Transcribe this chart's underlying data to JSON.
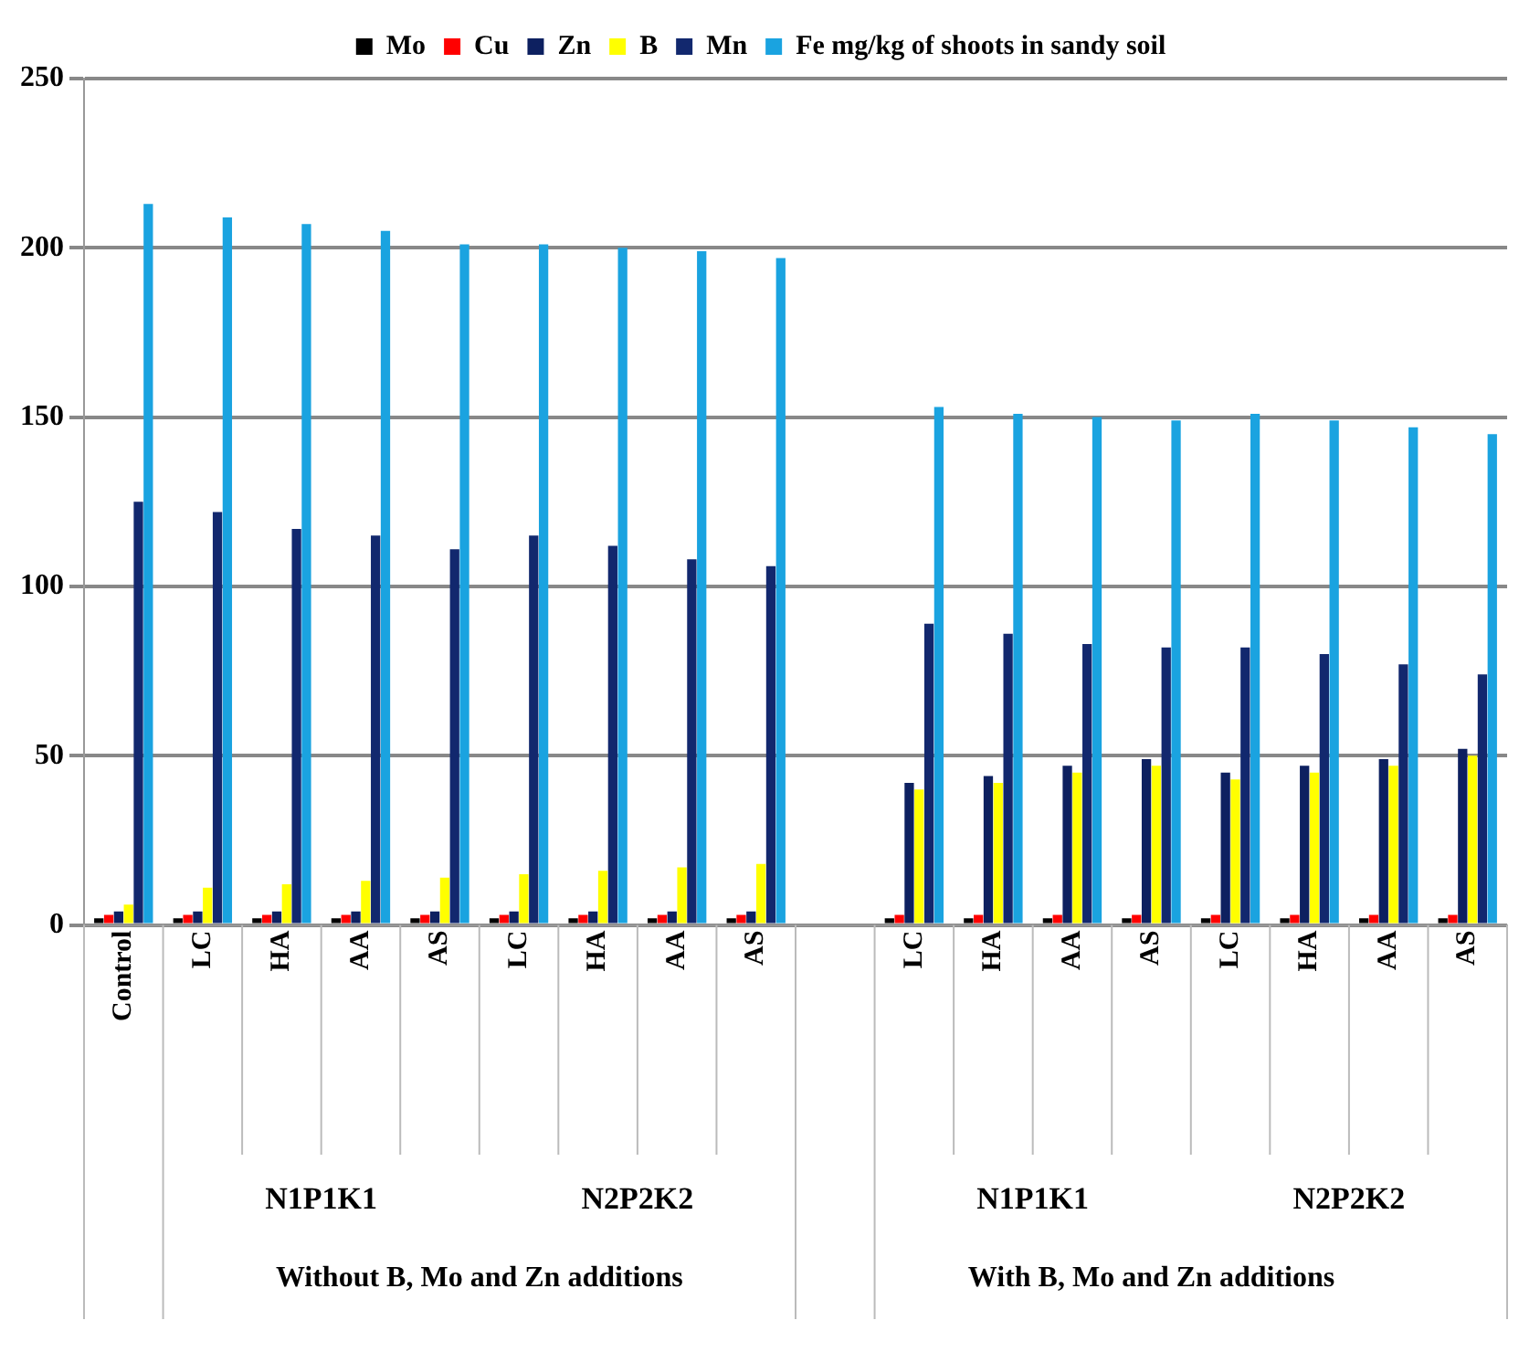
{
  "chart_data": {
    "type": "bar",
    "categories": [
      "Control",
      "LC",
      "HA",
      "AA",
      "AS",
      "LC",
      "HA",
      "AA",
      "AS",
      null,
      "LC",
      "HA",
      "AA",
      "AS",
      "LC",
      "HA",
      "AA",
      "AS"
    ],
    "series": [
      {
        "name": "Mo",
        "color": "#000000",
        "values": [
          2,
          2,
          2,
          2,
          2,
          2,
          2,
          2,
          2,
          null,
          2,
          2,
          2,
          2,
          2,
          2,
          2,
          2
        ]
      },
      {
        "name": "Cu",
        "color": "#ff0000",
        "values": [
          3,
          3,
          3,
          3,
          3,
          3,
          3,
          3,
          3,
          null,
          3,
          3,
          3,
          3,
          3,
          3,
          3,
          3
        ]
      },
      {
        "name": "Zn",
        "color": "#0d2060",
        "values": [
          4,
          4,
          4,
          4,
          4,
          4,
          4,
          4,
          4,
          null,
          42,
          44,
          47,
          49,
          45,
          47,
          49,
          52
        ]
      },
      {
        "name": "B",
        "color": "#ffff00",
        "values": [
          6,
          11,
          12,
          13,
          14,
          15,
          16,
          17,
          18,
          null,
          40,
          42,
          45,
          47,
          43,
          45,
          47,
          50
        ]
      },
      {
        "name": "Mn",
        "color": "#12286e",
        "values": [
          125,
          122,
          117,
          115,
          111,
          115,
          112,
          108,
          106,
          null,
          89,
          86,
          83,
          82,
          82,
          80,
          77,
          74
        ]
      },
      {
        "name": "Fe mg/kg of shoots in sandy soil",
        "color": "#1aa3e0",
        "values": [
          213,
          209,
          207,
          205,
          201,
          201,
          200,
          199,
          197,
          null,
          153,
          151,
          150,
          149,
          151,
          149,
          147,
          145
        ]
      }
    ],
    "ylim": [
      0,
      250
    ],
    "yticks": [
      0,
      50,
      100,
      150,
      200,
      250
    ],
    "grid": "y",
    "legend": "top",
    "annotations": [
      "N1P1K1",
      "N2P2K2",
      "N1P1K1",
      "N2P2K2",
      "Without B, Mo and Zn additions",
      "With B, Mo and Zn additions"
    ]
  }
}
